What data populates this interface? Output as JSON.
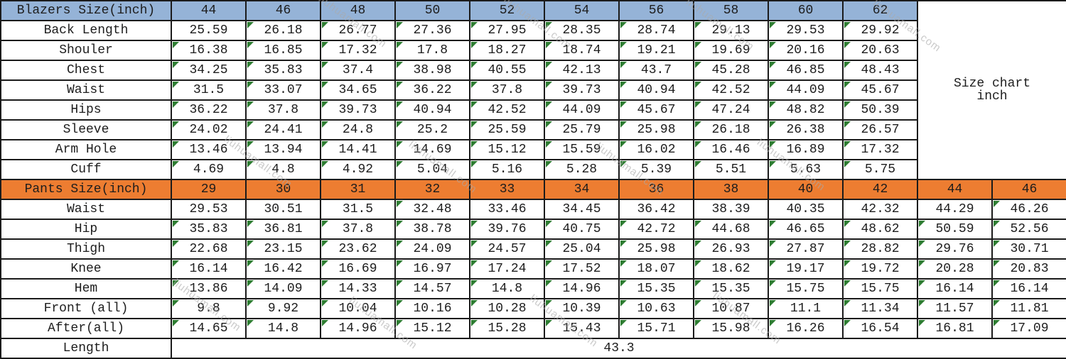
{
  "watermark": {
    "text": "liuhuamall.com"
  },
  "side_note": {
    "line1": "Size chart",
    "line2": "inch"
  },
  "colors": {
    "blazer_header_bg": "#95B3D7",
    "pants_header_bg": "#ED7D31",
    "grid_border": "#1b1b1b",
    "flag_triangle_green": "#2e7d32",
    "watermark_gray": "#aaaaaa"
  },
  "blazers": {
    "header_label": "Blazers Size(inch)",
    "sizes": [
      "44",
      "46",
      "48",
      "50",
      "52",
      "54",
      "56",
      "58",
      "60",
      "62"
    ],
    "rows": [
      {
        "label": "Back Length",
        "values": [
          "25.59",
          "26.18",
          "26.77",
          "27.36",
          "27.95",
          "28.35",
          "28.74",
          "29.13",
          "29.53",
          "29.92"
        ],
        "flags": [
          0,
          1,
          1,
          1,
          1,
          1,
          1,
          1,
          1,
          1
        ]
      },
      {
        "label": "Shouler",
        "values": [
          "16.38",
          "16.85",
          "17.32",
          "17.8",
          "18.27",
          "18.74",
          "19.21",
          "19.69",
          "20.16",
          "20.63"
        ],
        "flags": [
          1,
          1,
          1,
          1,
          1,
          1,
          1,
          1,
          1,
          1
        ]
      },
      {
        "label": "Chest",
        "values": [
          "34.25",
          "35.83",
          "37.4",
          "38.98",
          "40.55",
          "42.13",
          "43.7",
          "45.28",
          "46.85",
          "48.43"
        ],
        "flags": [
          1,
          1,
          1,
          1,
          1,
          1,
          1,
          1,
          1,
          1
        ]
      },
      {
        "label": "Waist",
        "values": [
          "31.5",
          "33.07",
          "34.65",
          "36.22",
          "37.8",
          "39.73",
          "40.94",
          "42.52",
          "44.09",
          "45.67"
        ],
        "flags": [
          1,
          1,
          1,
          1,
          1,
          1,
          1,
          1,
          1,
          1
        ]
      },
      {
        "label": "Hips",
        "values": [
          "36.22",
          "37.8",
          "39.73",
          "40.94",
          "42.52",
          "44.09",
          "45.67",
          "47.24",
          "48.82",
          "50.39"
        ],
        "flags": [
          1,
          1,
          1,
          1,
          1,
          1,
          1,
          1,
          1,
          1
        ]
      },
      {
        "label": "Sleeve",
        "values": [
          "24.02",
          "24.41",
          "24.8",
          "25.2",
          "25.59",
          "25.79",
          "25.98",
          "26.18",
          "26.38",
          "26.57"
        ],
        "flags": [
          1,
          1,
          1,
          1,
          1,
          1,
          1,
          1,
          1,
          1
        ]
      },
      {
        "label": "Arm Hole",
        "values": [
          "13.46",
          "13.94",
          "14.41",
          "14.69",
          "15.12",
          "15.59",
          "16.02",
          "16.46",
          "16.89",
          "17.32"
        ],
        "flags": [
          1,
          1,
          1,
          1,
          1,
          1,
          1,
          1,
          1,
          1
        ]
      },
      {
        "label": "Cuff",
        "values": [
          "4.69",
          "4.8",
          "4.92",
          "5.04",
          "5.16",
          "5.28",
          "5.39",
          "5.51",
          "5.63",
          "5.75"
        ],
        "flags": [
          1,
          1,
          1,
          1,
          1,
          1,
          1,
          1,
          1,
          1
        ]
      }
    ]
  },
  "pants": {
    "header_label": "Pants Size(inch)",
    "sizes": [
      "29",
      "30",
      "31",
      "32",
      "33",
      "34",
      "36",
      "38",
      "40",
      "42",
      "44",
      "46"
    ],
    "rows": [
      {
        "label": "Waist",
        "values": [
          "29.53",
          "30.51",
          "31.5",
          "32.48",
          "33.46",
          "34.45",
          "36.42",
          "38.39",
          "40.35",
          "42.32",
          "44.29",
          "46.26"
        ],
        "flags": [
          0,
          0,
          0,
          1,
          0,
          0,
          0,
          0,
          0,
          0,
          0,
          1
        ]
      },
      {
        "label": "Hip",
        "values": [
          "35.83",
          "36.81",
          "37.8",
          "38.78",
          "39.76",
          "40.75",
          "42.72",
          "44.68",
          "46.65",
          "48.62",
          "50.59",
          "52.56"
        ],
        "flags": [
          1,
          1,
          1,
          1,
          1,
          1,
          1,
          1,
          1,
          1,
          1,
          1
        ]
      },
      {
        "label": "Thigh",
        "values": [
          "22.68",
          "23.15",
          "23.62",
          "24.09",
          "24.57",
          "25.04",
          "25.98",
          "26.93",
          "27.87",
          "28.82",
          "29.76",
          "30.71"
        ],
        "flags": [
          1,
          1,
          1,
          1,
          1,
          1,
          1,
          1,
          1,
          1,
          1,
          1
        ]
      },
      {
        "label": "Knee",
        "values": [
          "16.14",
          "16.42",
          "16.69",
          "16.97",
          "17.24",
          "17.52",
          "18.07",
          "18.62",
          "19.17",
          "19.72",
          "20.28",
          "20.83"
        ],
        "flags": [
          1,
          1,
          1,
          1,
          1,
          1,
          1,
          1,
          1,
          1,
          1,
          1
        ]
      },
      {
        "label": "Hem",
        "values": [
          "13.86",
          "14.09",
          "14.33",
          "14.57",
          "14.8",
          "14.96",
          "15.35",
          "15.35",
          "15.75",
          "15.75",
          "16.14",
          "16.14"
        ],
        "flags": [
          1,
          1,
          1,
          1,
          1,
          1,
          1,
          1,
          1,
          1,
          1,
          1
        ]
      },
      {
        "label": "Front (all)",
        "values": [
          "9.8",
          "9.92",
          "10.04",
          "10.16",
          "10.28",
          "10.39",
          "10.63",
          "10.87",
          "11.1",
          "11.34",
          "11.57",
          "11.81"
        ],
        "flags": [
          1,
          1,
          1,
          1,
          1,
          1,
          1,
          1,
          1,
          1,
          1,
          1
        ]
      },
      {
        "label": "After(all)",
        "values": [
          "14.65",
          "14.8",
          "14.96",
          "15.12",
          "15.28",
          "15.43",
          "15.71",
          "15.98",
          "16.26",
          "16.54",
          "16.81",
          "17.09"
        ],
        "flags": [
          1,
          1,
          1,
          1,
          1,
          1,
          1,
          1,
          1,
          1,
          1,
          1
        ]
      }
    ],
    "length_row": {
      "label": "Length",
      "value": "43.3"
    }
  }
}
